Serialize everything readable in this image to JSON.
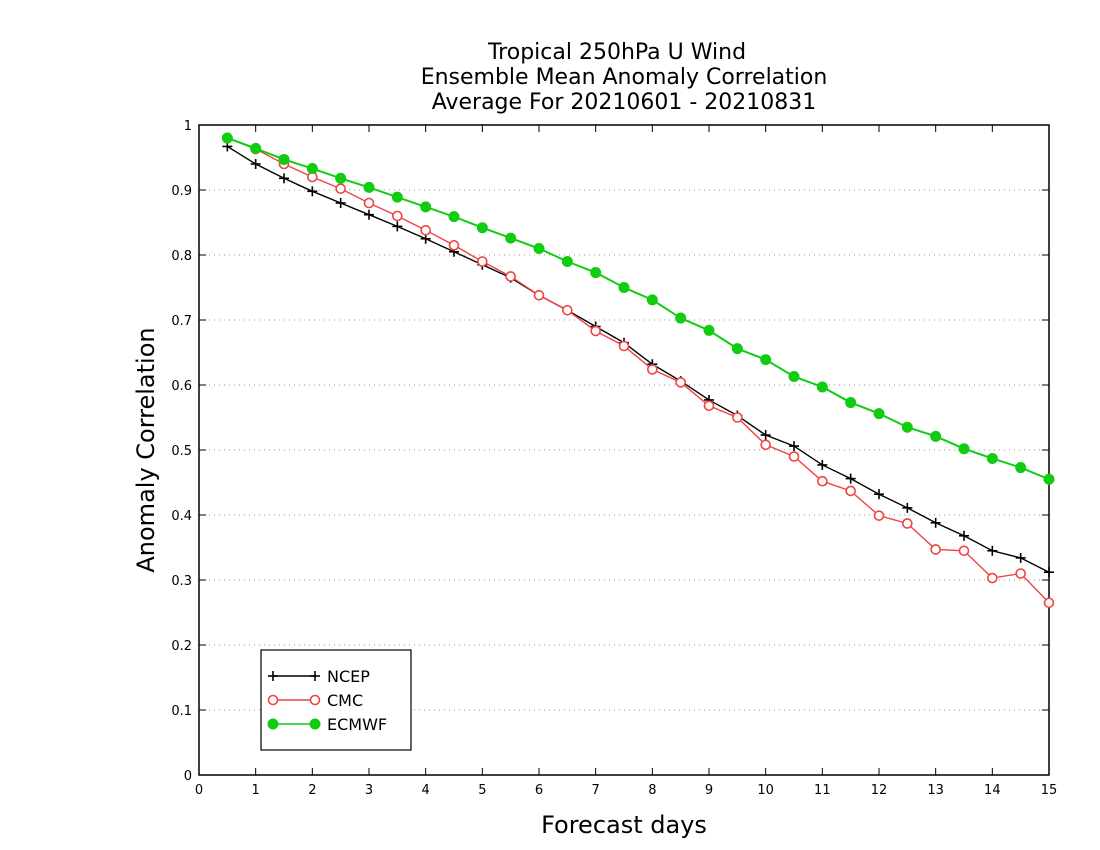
{
  "chart_data": {
    "type": "line",
    "title": [
      "Tropical 250hPa U Wind",
      "Ensemble Mean Anomaly Correlation",
      "Average For 20210601 - 20210831"
    ],
    "xlabel": "Forecast days",
    "ylabel": "Anomaly Correlation",
    "xlim": [
      0,
      15
    ],
    "ylim": [
      0,
      1
    ],
    "xticks": [
      "0",
      "1",
      "2",
      "3",
      "4",
      "5",
      "6",
      "7",
      "8",
      "9",
      "10",
      "11",
      "12",
      "13",
      "14",
      "15"
    ],
    "yticks": [
      "0",
      "0.1",
      "0.2",
      "0.3",
      "0.4",
      "0.5",
      "0.6",
      "0.7",
      "0.8",
      "0.9",
      "1"
    ],
    "grid": "horizontal dotted",
    "legend_position": "bottom-left",
    "x": [
      0.5,
      1,
      1.5,
      2,
      2.5,
      3,
      3.5,
      4,
      4.5,
      5,
      5.5,
      6,
      6.5,
      7,
      7.5,
      8,
      8.5,
      9,
      9.5,
      10,
      10.5,
      11,
      11.5,
      12,
      12.5,
      13,
      13.5,
      14,
      14.5,
      15
    ],
    "series": [
      {
        "name": "NCEP",
        "color": "#000000",
        "marker": "plus",
        "values": [
          0.967,
          0.94,
          0.918,
          0.898,
          0.88,
          0.862,
          0.844,
          0.825,
          0.805,
          0.785,
          0.765,
          0.738,
          0.715,
          0.69,
          0.665,
          0.632,
          0.606,
          0.577,
          0.553,
          0.523,
          0.506,
          0.477,
          0.456,
          0.432,
          0.411,
          0.388,
          0.368,
          0.345,
          0.334,
          0.312
        ]
      },
      {
        "name": "CMC",
        "color": "#ee4444",
        "marker": "open-circle",
        "values": [
          0.98,
          0.963,
          0.94,
          0.92,
          0.902,
          0.88,
          0.86,
          0.838,
          0.815,
          0.79,
          0.767,
          0.738,
          0.715,
          0.683,
          0.66,
          0.624,
          0.604,
          0.568,
          0.55,
          0.508,
          0.49,
          0.452,
          0.437,
          0.399,
          0.387,
          0.347,
          0.345,
          0.303,
          0.31,
          0.265
        ]
      },
      {
        "name": "ECMWF",
        "color": "#11cc11",
        "marker": "filled-circle",
        "values": [
          0.98,
          0.964,
          0.947,
          0.933,
          0.918,
          0.904,
          0.889,
          0.874,
          0.859,
          0.842,
          0.826,
          0.81,
          0.79,
          0.773,
          0.75,
          0.731,
          0.703,
          0.684,
          0.656,
          0.639,
          0.613,
          0.597,
          0.573,
          0.556,
          0.535,
          0.521,
          0.502,
          0.487,
          0.473,
          0.455
        ]
      }
    ]
  }
}
